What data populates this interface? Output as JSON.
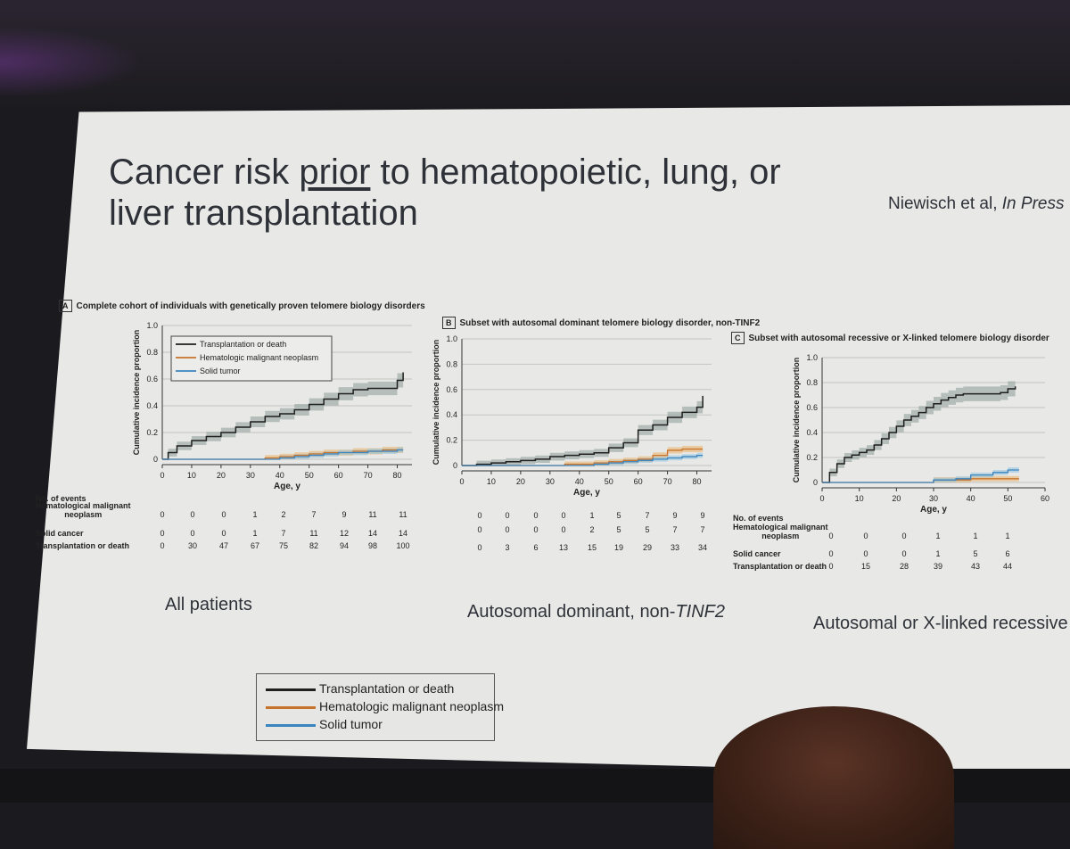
{
  "slide": {
    "title_pre": "Cancer risk ",
    "title_underlined": "prior",
    "title_post": " to hematopoietic, lung, or liver transplantation",
    "citation_authors": "Niewisch et al, ",
    "citation_status": "In Press"
  },
  "colors": {
    "transplant_or_death": "#1f1f1f",
    "hematologic": "#c8732b",
    "solid_tumor": "#3a84c0",
    "band_dark": "#8a9a98",
    "band_orange": "#e9b067",
    "band_blue": "#8fc3df"
  },
  "panels": [
    {
      "label": "A",
      "heading": "Complete cohort of individuals with genetically proven telomere biology disorders",
      "caption": "All patients",
      "legend": [
        "Transplantation or death",
        "Hematologic malignant neoplasm",
        "Solid tumor"
      ],
      "chart_data": {
        "type": "line",
        "xlabel": "Age, y",
        "ylabel": "Cumulative incidence proportion",
        "xlim": [
          0,
          85
        ],
        "ylim": [
          0,
          1.0
        ],
        "xticks": [
          "0",
          "10",
          "20",
          "30",
          "40",
          "50",
          "60",
          "70",
          "80"
        ],
        "yticks": [
          "0",
          "0.2",
          "0.4",
          "0.6",
          "0.8",
          "1.0"
        ],
        "series": [
          {
            "name": "Transplantation or death",
            "x": [
              0,
              2,
              5,
              10,
              15,
              20,
              25,
              30,
              35,
              40,
              45,
              50,
              55,
              60,
              65,
              70,
              75,
              80,
              82
            ],
            "y": [
              0,
              0.05,
              0.1,
              0.14,
              0.17,
              0.2,
              0.24,
              0.28,
              0.32,
              0.34,
              0.37,
              0.41,
              0.45,
              0.49,
              0.52,
              0.53,
              0.53,
              0.59,
              0.65
            ]
          },
          {
            "name": "Hematologic malignant neoplasm",
            "x": [
              0,
              30,
              35,
              40,
              45,
              50,
              55,
              60,
              65,
              70,
              75,
              80,
              82
            ],
            "y": [
              0,
              0,
              0.01,
              0.02,
              0.03,
              0.04,
              0.05,
              0.05,
              0.06,
              0.06,
              0.07,
              0.07,
              0.07
            ]
          },
          {
            "name": "Solid tumor",
            "x": [
              0,
              30,
              35,
              40,
              45,
              50,
              55,
              60,
              65,
              70,
              75,
              80,
              82
            ],
            "y": [
              0,
              0,
              0,
              0.01,
              0.02,
              0.03,
              0.04,
              0.05,
              0.05,
              0.06,
              0.06,
              0.07,
              0.07
            ]
          }
        ]
      },
      "table": {
        "header": "No. of events",
        "rows": [
          {
            "label": "Hematological malignant\nneoplasm",
            "values": [
              "0",
              "0",
              "0",
              "1",
              "2",
              "7",
              "9",
              "11",
              "11"
            ]
          },
          {
            "label": "Solid cancer",
            "values": [
              "0",
              "0",
              "0",
              "1",
              "7",
              "11",
              "12",
              "14",
              "14"
            ]
          },
          {
            "label": "Transplantation or death",
            "values": [
              "0",
              "30",
              "47",
              "67",
              "75",
              "82",
              "94",
              "98",
              "100"
            ]
          }
        ]
      }
    },
    {
      "label": "B",
      "heading": "Subset with autosomal dominant telomere biology disorder, non-TINF2",
      "caption_pre": "Autosomal dominant, non-",
      "caption_italic": "TINF2",
      "chart_data": {
        "type": "line",
        "xlabel": "Age, y",
        "ylabel": "Cumulative incidence proportion",
        "xlim": [
          0,
          85
        ],
        "ylim": [
          0,
          1.0
        ],
        "xticks": [
          "0",
          "10",
          "20",
          "30",
          "40",
          "50",
          "60",
          "70",
          "80"
        ],
        "yticks": [
          "0",
          "0.2",
          "0.4",
          "0.6",
          "0.8",
          "1.0"
        ],
        "series": [
          {
            "name": "Transplantation or death",
            "x": [
              0,
              5,
              10,
              15,
              20,
              25,
              30,
              35,
              40,
              45,
              50,
              55,
              60,
              65,
              70,
              75,
              80,
              82
            ],
            "y": [
              0,
              0.01,
              0.02,
              0.03,
              0.04,
              0.05,
              0.07,
              0.08,
              0.09,
              0.1,
              0.14,
              0.18,
              0.28,
              0.32,
              0.38,
              0.42,
              0.46,
              0.55
            ]
          },
          {
            "name": "Hematologic malignant neoplasm",
            "x": [
              0,
              35,
              40,
              45,
              50,
              55,
              60,
              65,
              70,
              75,
              80,
              82
            ],
            "y": [
              0,
              0.01,
              0.01,
              0.02,
              0.03,
              0.04,
              0.05,
              0.08,
              0.12,
              0.13,
              0.13,
              0.13
            ]
          },
          {
            "name": "Solid tumor",
            "x": [
              0,
              40,
              45,
              50,
              55,
              60,
              65,
              70,
              75,
              80,
              82
            ],
            "y": [
              0,
              0,
              0.01,
              0.02,
              0.03,
              0.04,
              0.05,
              0.06,
              0.07,
              0.08,
              0.08
            ]
          }
        ]
      },
      "table": {
        "header": "",
        "rows": [
          {
            "label": "",
            "values": [
              "0",
              "0",
              "0",
              "0",
              "1",
              "5",
              "7",
              "9",
              "9"
            ]
          },
          {
            "label": "",
            "values": [
              "0",
              "0",
              "0",
              "0",
              "2",
              "5",
              "5",
              "7",
              "7"
            ]
          },
          {
            "label": "",
            "values": [
              "0",
              "3",
              "6",
              "13",
              "15",
              "19",
              "29",
              "33",
              "34"
            ]
          }
        ]
      }
    },
    {
      "label": "C",
      "heading": "Subset with autosomal recessive or X-linked telomere biology disorder",
      "caption": "Autosomal or X-linked recessive",
      "chart_data": {
        "type": "line",
        "xlabel": "Age, y",
        "ylabel": "Cumulative incidence proportion",
        "xlim": [
          0,
          60
        ],
        "ylim": [
          0,
          1.0
        ],
        "xticks": [
          "0",
          "10",
          "20",
          "30",
          "40",
          "50",
          "60"
        ],
        "yticks": [
          "0",
          "0.2",
          "0.4",
          "0.6",
          "0.8",
          "1.0"
        ],
        "series": [
          {
            "name": "Transplantation or death",
            "x": [
              0,
              2,
              4,
              6,
              8,
              10,
              12,
              14,
              16,
              18,
              20,
              22,
              24,
              26,
              28,
              30,
              32,
              34,
              36,
              38,
              40,
              44,
              48,
              50,
              52
            ],
            "y": [
              0,
              0.08,
              0.15,
              0.2,
              0.22,
              0.24,
              0.26,
              0.3,
              0.35,
              0.4,
              0.45,
              0.5,
              0.53,
              0.56,
              0.6,
              0.63,
              0.66,
              0.68,
              0.7,
              0.71,
              0.71,
              0.71,
              0.72,
              0.75,
              0.77
            ]
          },
          {
            "name": "Hematologic malignant neoplasm",
            "x": [
              0,
              26,
              30,
              40,
              50,
              53
            ],
            "y": [
              0,
              0,
              0.02,
              0.03,
              0.03,
              0.03
            ]
          },
          {
            "name": "Solid tumor",
            "x": [
              0,
              26,
              30,
              36,
              40,
              46,
              50,
              53
            ],
            "y": [
              0,
              0,
              0.02,
              0.03,
              0.06,
              0.08,
              0.1,
              0.1
            ]
          }
        ]
      },
      "table": {
        "header": "No. of events",
        "rows": [
          {
            "label": "Hematological malignant\nneoplasm",
            "values": [
              "0",
              "0",
              "0",
              "1",
              "1",
              "1"
            ]
          },
          {
            "label": "Solid cancer",
            "values": [
              "0",
              "0",
              "0",
              "1",
              "5",
              "6"
            ]
          },
          {
            "label": "Transplantation or death",
            "values": [
              "0",
              "15",
              "28",
              "39",
              "43",
              "44"
            ]
          }
        ]
      }
    }
  ],
  "bottom_legend": [
    "Transplantation or death",
    "Hematologic malignant neoplasm",
    "Solid tumor"
  ]
}
